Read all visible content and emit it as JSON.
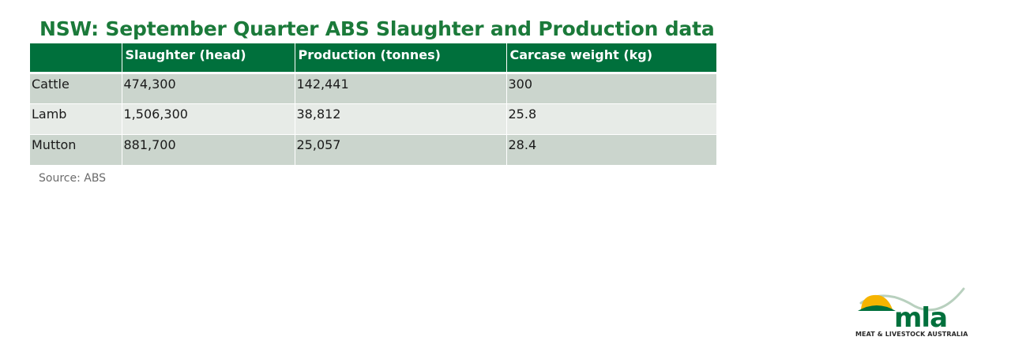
{
  "title": "NSW: September Quarter ABS Slaughter and Production data",
  "table": {
    "headers": [
      "",
      "Slaughter (head)",
      "Production (tonnes)",
      "Carcase weight (kg)"
    ],
    "rows": [
      [
        "Cattle",
        "474,300",
        "142,441",
        "300"
      ],
      [
        "Lamb",
        "1,506,300",
        "38,812",
        "25.8"
      ],
      [
        "Mutton",
        "881,700",
        "25,057",
        "28.4"
      ]
    ]
  },
  "source": "Source: ABS",
  "logo": {
    "wordmark": "mla",
    "tagline": "MEAT & LIVESTOCK AUSTRALIA",
    "colors": {
      "sun": "#f6b400",
      "green": "#00703c",
      "swoosh": "#b8d0be"
    }
  },
  "colors": {
    "title": "#1b7a3a",
    "header_bg": "#00703c",
    "row_odd": "#cbd5cd",
    "row_even": "#e7ebe7"
  }
}
